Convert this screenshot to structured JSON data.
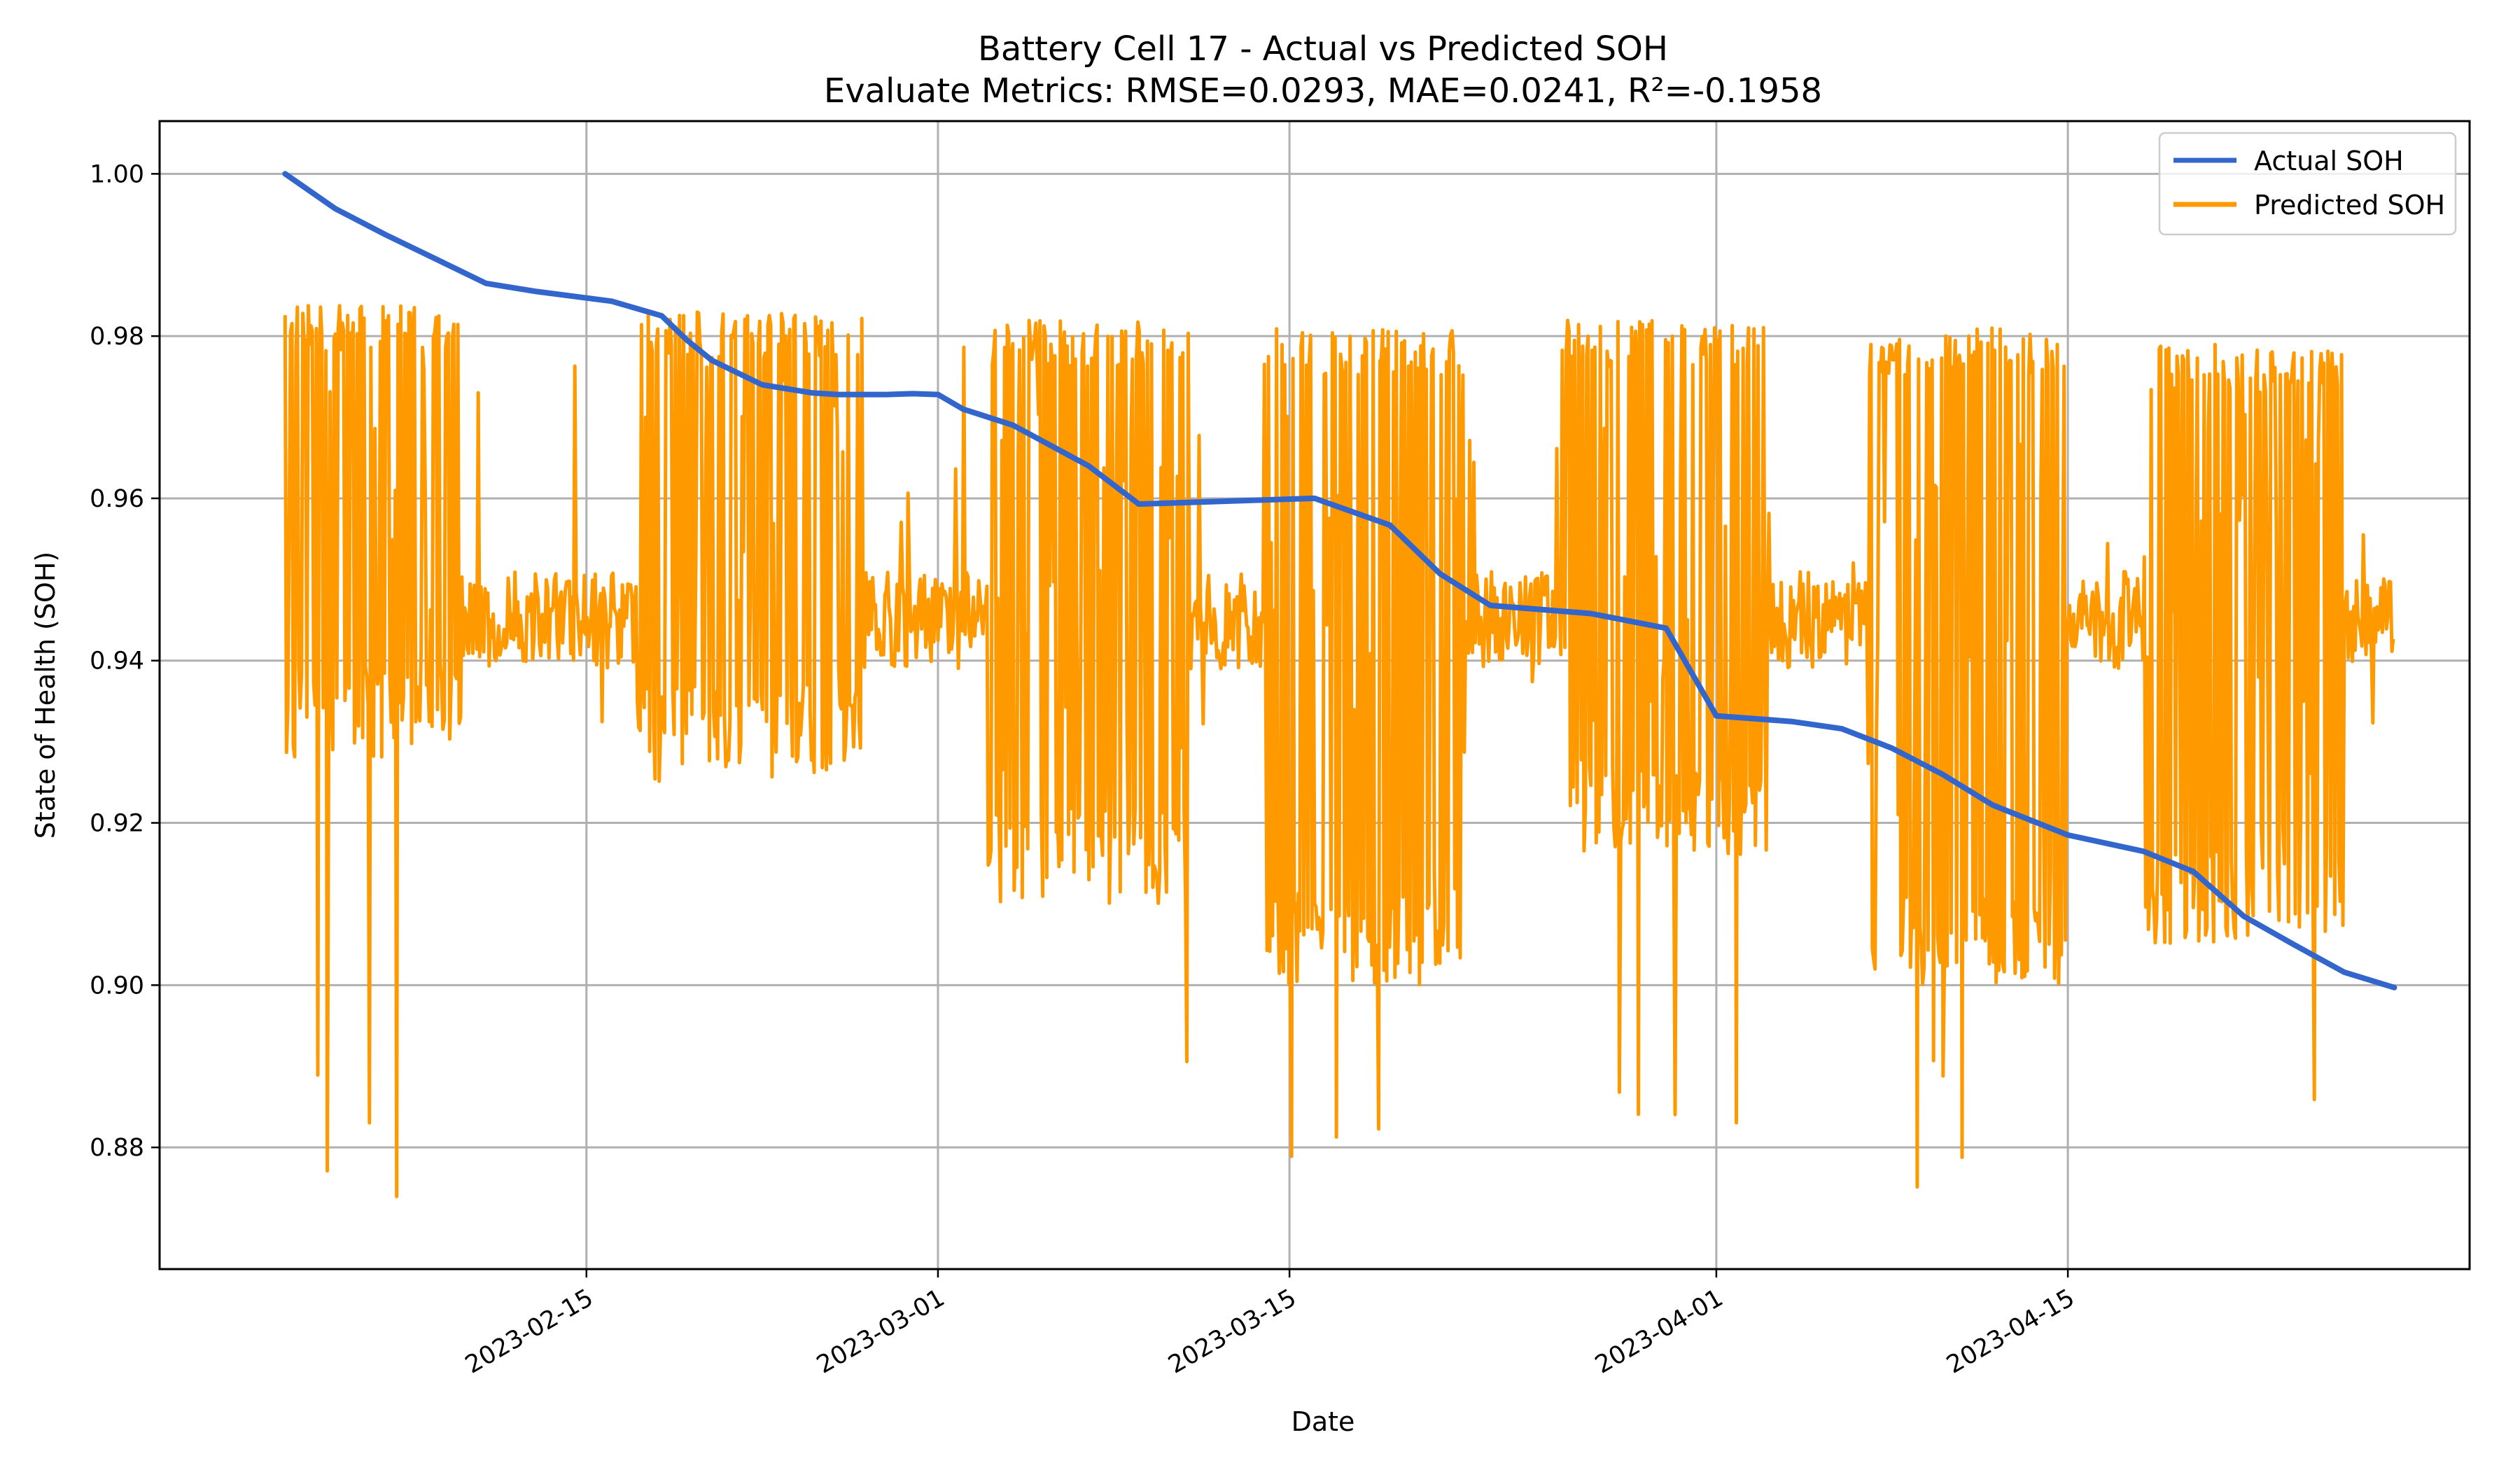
{
  "chart_data": {
    "type": "line",
    "title": "Battery Cell 17 - Actual vs Predicted SOH",
    "subtitle": "Evaluate Metrics: RMSE=0.0293, MAE=0.0241, R²=-0.1958",
    "xlabel": "Date",
    "ylabel": "State of Health (SOH)",
    "x_range": [
      "2023-01-29",
      "2023-05-01"
    ],
    "ylim": [
      0.865,
      1.0065
    ],
    "grid": true,
    "legend_position": "top-right",
    "x_ticks": [
      "2023-02-15",
      "2023-03-01",
      "2023-03-15",
      "2023-04-01",
      "2023-04-15"
    ],
    "y_ticks": [
      "0.88",
      "0.90",
      "0.92",
      "0.94",
      "0.96",
      "0.98",
      "1.00"
    ],
    "colors": {
      "actual": "#3366cc",
      "predicted": "#ff9900"
    },
    "series": [
      {
        "name": "Actual SOH",
        "x": [
          "2023-02-03",
          "2023-02-05",
          "2023-02-07",
          "2023-02-09",
          "2023-02-11",
          "2023-02-13",
          "2023-02-16",
          "2023-02-18",
          "2023-02-19",
          "2023-02-20",
          "2023-02-21",
          "2023-02-22",
          "2023-02-23",
          "2023-02-24",
          "2023-02-25",
          "2023-02-26",
          "2023-02-27",
          "2023-02-28",
          "2023-03-01",
          "2023-03-02",
          "2023-03-04",
          "2023-03-07",
          "2023-03-09",
          "2023-03-13",
          "2023-03-16",
          "2023-03-19",
          "2023-03-21",
          "2023-03-23",
          "2023-03-27",
          "2023-03-30",
          "2023-04-01",
          "2023-04-04",
          "2023-04-06",
          "2023-04-08",
          "2023-04-10",
          "2023-04-12",
          "2023-04-15",
          "2023-04-18",
          "2023-04-20",
          "2023-04-22",
          "2023-04-24",
          "2023-04-26",
          "2023-04-28"
        ],
        "values": [
          1.0,
          0.9957,
          0.9925,
          0.9895,
          0.9865,
          0.9855,
          0.9843,
          0.9825,
          0.9795,
          0.977,
          0.9755,
          0.974,
          0.9735,
          0.973,
          0.9728,
          0.9728,
          0.9728,
          0.9729,
          0.9728,
          0.971,
          0.969,
          0.964,
          0.9593,
          0.9597,
          0.96,
          0.9567,
          0.9507,
          0.9468,
          0.9458,
          0.944,
          0.9332,
          0.9325,
          0.9316,
          0.9292,
          0.926,
          0.9222,
          0.9185,
          0.9165,
          0.914,
          0.9085,
          0.905,
          0.9016,
          0.8997
        ]
      },
      {
        "name": "Predicted SOH",
        "blocks": [
          {
            "start": "2023-02-03",
            "end": "2023-02-10",
            "low": 0.928,
            "high": 0.984
          },
          {
            "start": "2023-02-17",
            "end": "2023-02-26",
            "low": 0.925,
            "high": 0.983
          },
          {
            "start": "2023-03-03",
            "end": "2023-03-11",
            "low": 0.91,
            "high": 0.982
          },
          {
            "start": "2023-03-14",
            "end": "2023-03-22",
            "low": 0.9,
            "high": 0.981
          },
          {
            "start": "2023-03-26",
            "end": "2023-04-03",
            "low": 0.915,
            "high": 0.982
          },
          {
            "start": "2023-04-07",
            "end": "2023-04-15",
            "low": 0.9,
            "high": 0.981
          },
          {
            "start": "2023-04-18",
            "end": "2023-04-26",
            "low": 0.905,
            "high": 0.979
          }
        ],
        "gaps_level": 0.945,
        "min_value": 0.871,
        "max_value": 0.985
      }
    ]
  }
}
